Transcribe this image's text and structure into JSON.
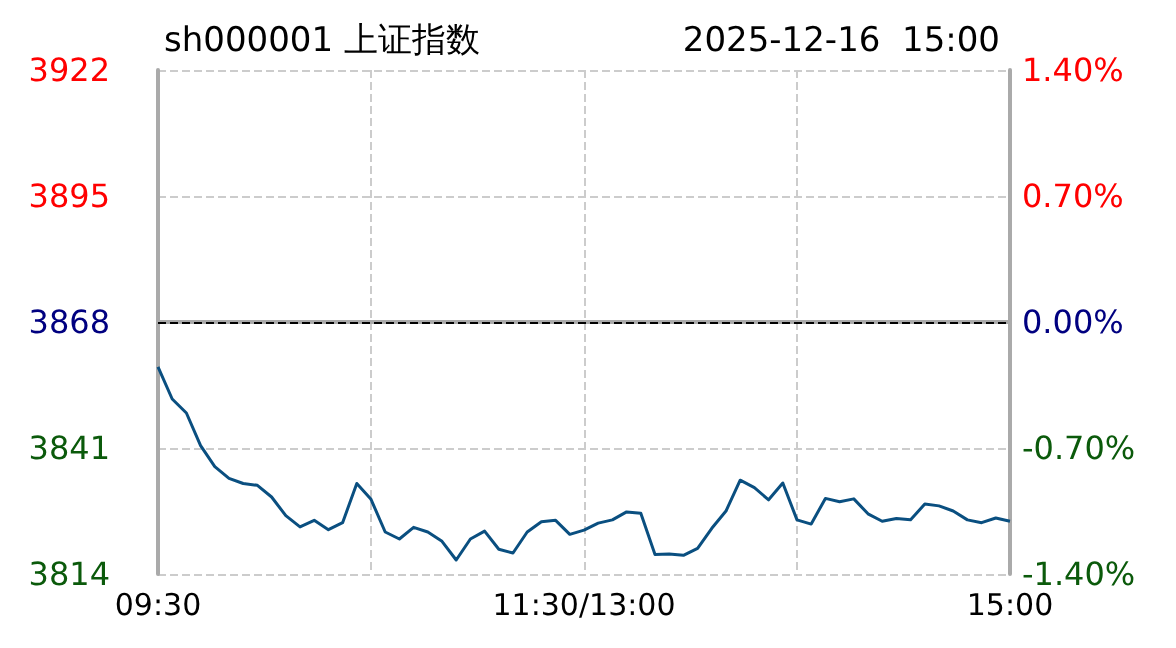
{
  "chart_data": {
    "type": "line",
    "title": "sh000001 上证指数",
    "subtitle": "2025-12-16  15:00",
    "categories": [
      "09:30",
      null,
      null,
      null,
      null,
      null,
      null,
      null,
      null,
      null,
      null,
      null,
      null,
      null,
      null,
      null,
      null,
      null,
      null,
      null,
      null,
      null,
      null,
      null,
      null,
      null,
      null,
      null,
      null,
      null,
      "11:30/13:00",
      null,
      null,
      null,
      null,
      null,
      null,
      null,
      null,
      null,
      null,
      null,
      null,
      null,
      null,
      null,
      null,
      null,
      null,
      null,
      null,
      null,
      null,
      null,
      null,
      null,
      null,
      null,
      null,
      null,
      "15:00"
    ],
    "series": [
      {
        "color": "#0a4f80",
        "values": [
          3858.4,
          3851.5,
          3848.5,
          3841.5,
          3837,
          3834.5,
          3833.4,
          3833,
          3830.5,
          3826.5,
          3824.1,
          3825.5,
          3823.5,
          3825,
          3833.4,
          3830,
          3823,
          3821.5,
          3824,
          3823,
          3821,
          3817,
          3821.5,
          3823.2,
          3819.3,
          3818.5,
          3823,
          3825.2,
          3825.5,
          3822.5,
          3823.4,
          3824.9,
          3825.6,
          3827.3,
          3827,
          3818.2,
          3818.3,
          3818,
          3819.5,
          3823.8,
          3827.5,
          3834.1,
          3832.5,
          3829.9,
          3833.5,
          3825.6,
          3824.7,
          3830.2,
          3829.5,
          3830.1,
          3826.9,
          3825.3,
          3825.9,
          3825.6,
          3829,
          3828.6,
          3827.5,
          3825.6,
          3825,
          3826,
          3825.3
        ]
      }
    ],
    "ylim": [
      3814,
      3922
    ],
    "yticks": [
      3814,
      3841,
      3868,
      3895,
      3922
    ],
    "y2lim": [
      -1.4,
      1.4
    ],
    "y2ticks": [
      {
        "value": -1.4,
        "label": "-1.40%"
      },
      {
        "value": -0.7,
        "label": "-0.70%"
      },
      {
        "value": 0,
        "label": "0.00%"
      },
      {
        "value": 0.7,
        "label": "0.70%"
      },
      {
        "value": 1.4,
        "label": "1.40%"
      }
    ],
    "ref_lines": [
      {
        "axis": "y",
        "value": 3868,
        "color": "#000000",
        "line_style": "dashed"
      }
    ],
    "grid": true,
    "marker": "none",
    "line_style": "solid"
  }
}
